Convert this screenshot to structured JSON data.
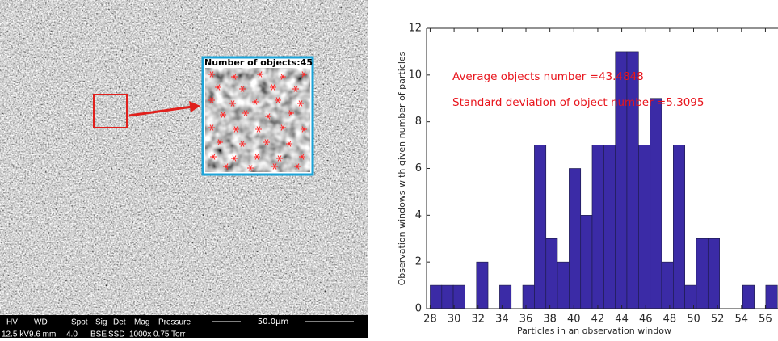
{
  "chart_data": {
    "type": "histogram",
    "xlabel": "Particles in an observation window",
    "ylabel": "Observation windows with given number of particles",
    "annotations": [
      "Average objects number =43.4848",
      "Standard deviation of object number =5.3095"
    ],
    "bins": [
      28,
      28.97,
      29.93,
      30.9,
      31.87,
      32.83,
      33.8,
      34.77,
      35.73,
      36.7,
      37.67,
      38.63,
      39.6,
      40.57,
      41.53,
      42.5,
      43.47,
      44.43,
      45.4,
      46.37,
      47.33,
      48.3,
      49.27,
      50.23,
      51.2,
      52.17,
      53.13,
      54.1,
      55.07,
      56.03,
      57
    ],
    "values": [
      1,
      1,
      1,
      0,
      2,
      0,
      1,
      0,
      1,
      7,
      3,
      2,
      6,
      4,
      7,
      7,
      11,
      11,
      7,
      9,
      2,
      7,
      1,
      3,
      3,
      0,
      0,
      1,
      0,
      1
    ],
    "color": "#3b2ba6",
    "annotation_color": "#e8141c",
    "xlim": [
      27.7,
      57.05
    ],
    "ylim": [
      0,
      12
    ],
    "xticks": [
      28,
      30,
      32,
      34,
      36,
      38,
      40,
      42,
      44,
      46,
      48,
      50,
      52,
      54,
      56
    ],
    "yticks": [
      0,
      2,
      4,
      6,
      8,
      10,
      12
    ]
  },
  "image": {
    "inset_title": "Number of objects:45",
    "info_headers": [
      "HV",
      "WD",
      "Spot",
      "Sig",
      "Det",
      "Mag",
      "Pressure"
    ],
    "info_values": [
      "12.5 kV",
      "9.6 mm",
      "4.0",
      "BSE",
      "SSD",
      "1000x",
      "0.75 Torr"
    ],
    "scale_label": "50.0µm"
  }
}
